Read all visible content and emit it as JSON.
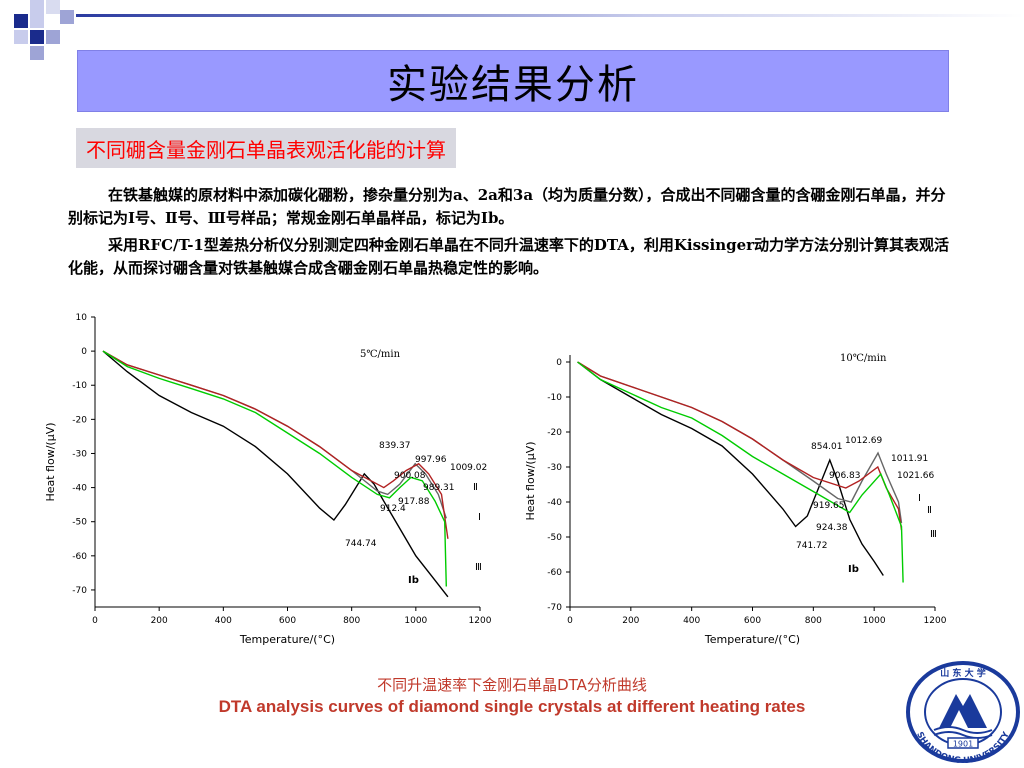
{
  "slide": {
    "title": "实验结果分析",
    "subtitle": "不同硼含量金刚石单晶表观活化能的计算",
    "paragraph1": "在铁基触媒的原材料中添加碳化硼粉，掺杂量分别为a、2a和3a（均为质量分数），合成出不同硼含量的含硼金刚石单晶，并分别标记为Ⅰ号、Ⅱ号、Ⅲ号样品；常规金刚石单晶样品，标记为Ib。",
    "paragraph2": "采用RFC/T-1型差热分析仪分别测定四种金刚石单晶在不同升温速率下的DTA，利用Kissinger动力学方法分别计算其表观活化能，从而探讨硼含量对铁基触媒合成含硼金刚石单晶热稳定性的影响。",
    "caption_cn": "不同升温速率下金刚石单晶DTA分析曲线",
    "caption_en": "DTA analysis curves of diamond single crystals at different heating rates",
    "logo_text": "SHANDONG UNIVERSITY",
    "logo_year": "1901",
    "logo_top": "山 东 大 学"
  },
  "colors": {
    "title_bg": "#9999ff",
    "subtitle_text": "#ff0000",
    "caption": "#c0392b",
    "series_black": "#000000",
    "series_red": "#b22222",
    "series_green": "#00cc00",
    "series_gray": "#666666"
  },
  "chart_data": [
    {
      "type": "line",
      "title": "",
      "annotation": "5℃/min",
      "xlabel": "Temperature/(°C)",
      "ylabel": "Heat flow/(μV)",
      "xlim": [
        0,
        1200
      ],
      "ylim": [
        -75,
        10
      ],
      "xticks": [
        0,
        200,
        400,
        600,
        800,
        1000,
        1200
      ],
      "yticks": [
        10,
        0,
        -10,
        -20,
        -30,
        -40,
        -50,
        -60,
        -70
      ],
      "series": [
        {
          "name": "Ib",
          "color": "#000000",
          "points": [
            [
              25,
              0
            ],
            [
              100,
              -6
            ],
            [
              200,
              -13
            ],
            [
              300,
              -18
            ],
            [
              400,
              -22
            ],
            [
              500,
              -28
            ],
            [
              600,
              -36
            ],
            [
              700,
              -46
            ],
            [
              744.74,
              -49.5
            ],
            [
              780,
              -45
            ],
            [
              839.37,
              -36
            ],
            [
              870,
              -39
            ],
            [
              900,
              -44
            ],
            [
              950,
              -52
            ],
            [
              1000,
              -60
            ],
            [
              1050,
              -66
            ],
            [
              1100,
              -72
            ]
          ]
        },
        {
          "name": "Ⅰ",
          "color": "#666666",
          "points": [
            [
              25,
              0
            ],
            [
              100,
              -4
            ],
            [
              200,
              -7
            ],
            [
              300,
              -10
            ],
            [
              400,
              -13
            ],
            [
              500,
              -17
            ],
            [
              600,
              -22
            ],
            [
              700,
              -28
            ],
            [
              800,
              -35
            ],
            [
              880,
              -41
            ],
            [
              912.4,
              -42
            ],
            [
              950,
              -39
            ],
            [
              997.96,
              -33
            ],
            [
              1030,
              -36
            ],
            [
              1070,
              -42
            ],
            [
              1095,
              -49
            ]
          ]
        },
        {
          "name": "Ⅱ",
          "color": "#b22222",
          "points": [
            [
              25,
              0
            ],
            [
              100,
              -4
            ],
            [
              200,
              -7
            ],
            [
              300,
              -10
            ],
            [
              400,
              -13
            ],
            [
              500,
              -17
            ],
            [
              600,
              -22
            ],
            [
              700,
              -28
            ],
            [
              800,
              -35
            ],
            [
              900.08,
              -40
            ],
            [
              930,
              -38
            ],
            [
              970,
              -35
            ],
            [
              1009.02,
              -33
            ],
            [
              1040,
              -36
            ],
            [
              1080,
              -42
            ],
            [
              1100,
              -55
            ]
          ]
        },
        {
          "name": "Ⅲ",
          "color": "#00cc00",
          "points": [
            [
              25,
              0
            ],
            [
              100,
              -4.5
            ],
            [
              200,
              -8
            ],
            [
              300,
              -11
            ],
            [
              400,
              -14
            ],
            [
              500,
              -18
            ],
            [
              600,
              -24
            ],
            [
              700,
              -30
            ],
            [
              800,
              -37
            ],
            [
              880,
              -42
            ],
            [
              917.88,
              -43
            ],
            [
              950,
              -40
            ],
            [
              985,
              -37
            ],
            [
              1020,
              -38
            ],
            [
              1060,
              -44
            ],
            [
              1090,
              -50
            ],
            [
              1095,
              -69
            ]
          ]
        }
      ],
      "annotations": [
        "839.37",
        "997.96",
        "900.08",
        "1009.02",
        "989.31",
        "917.88",
        "912.4",
        "744.74",
        "Ⅱ",
        "Ⅰ",
        "Ⅲ",
        "Ib"
      ]
    },
    {
      "type": "line",
      "title": "",
      "annotation": "10℃/min",
      "xlabel": "Temperature/(°C)",
      "ylabel": "Heat flow/(μV)",
      "xlim": [
        0,
        1200
      ],
      "ylim": [
        -70,
        2
      ],
      "xticks": [
        0,
        200,
        400,
        600,
        800,
        1000,
        1200
      ],
      "yticks": [
        0,
        -10,
        -20,
        -30,
        -40,
        -50,
        -60,
        -70
      ],
      "series": [
        {
          "name": "Ib",
          "color": "#000000",
          "points": [
            [
              25,
              0
            ],
            [
              100,
              -5
            ],
            [
              200,
              -10
            ],
            [
              300,
              -15
            ],
            [
              400,
              -19
            ],
            [
              500,
              -24
            ],
            [
              600,
              -32
            ],
            [
              700,
              -42
            ],
            [
              741.72,
              -47
            ],
            [
              780,
              -44
            ],
            [
              854.01,
              -28
            ],
            [
              880,
              -34
            ],
            [
              920,
              -45
            ],
            [
              960,
              -52
            ],
            [
              1000,
              -57
            ],
            [
              1030,
              -61
            ]
          ]
        },
        {
          "name": "Ⅰ",
          "color": "#666666",
          "points": [
            [
              25,
              0
            ],
            [
              100,
              -4
            ],
            [
              200,
              -7
            ],
            [
              300,
              -10
            ],
            [
              400,
              -13
            ],
            [
              500,
              -17
            ],
            [
              600,
              -22
            ],
            [
              700,
              -28
            ],
            [
              800,
              -34
            ],
            [
              880,
              -39
            ],
            [
              924.38,
              -40
            ],
            [
              960,
              -34
            ],
            [
              1012.69,
              -26
            ],
            [
              1040,
              -32
            ],
            [
              1080,
              -40
            ],
            [
              1090,
              -46
            ]
          ]
        },
        {
          "name": "Ⅱ",
          "color": "#b22222",
          "points": [
            [
              25,
              0
            ],
            [
              100,
              -4
            ],
            [
              200,
              -7
            ],
            [
              300,
              -10
            ],
            [
              400,
              -13
            ],
            [
              500,
              -17
            ],
            [
              600,
              -22
            ],
            [
              700,
              -28
            ],
            [
              800,
              -33
            ],
            [
              906.83,
              -36
            ],
            [
              950,
              -34
            ],
            [
              1011.91,
              -30
            ],
            [
              1040,
              -36
            ],
            [
              1080,
              -42
            ],
            [
              1090,
              -48
            ]
          ]
        },
        {
          "name": "Ⅲ",
          "color": "#00cc00",
          "points": [
            [
              25,
              0
            ],
            [
              100,
              -5
            ],
            [
              200,
              -9
            ],
            [
              300,
              -13
            ],
            [
              400,
              -16
            ],
            [
              500,
              -21
            ],
            [
              600,
              -27
            ],
            [
              700,
              -32
            ],
            [
              800,
              -37
            ],
            [
              919.65,
              -43
            ],
            [
              960,
              -38
            ],
            [
              1021.66,
              -32
            ],
            [
              1050,
              -38
            ],
            [
              1090,
              -47
            ],
            [
              1095,
              -63
            ]
          ]
        }
      ],
      "annotations": [
        "854.01",
        "1012.69",
        "1011.91",
        "906.83",
        "1021.66",
        "919.65",
        "924.38",
        "741.72",
        "Ⅰ",
        "Ⅱ",
        "Ⅲ",
        "Ib"
      ]
    }
  ]
}
